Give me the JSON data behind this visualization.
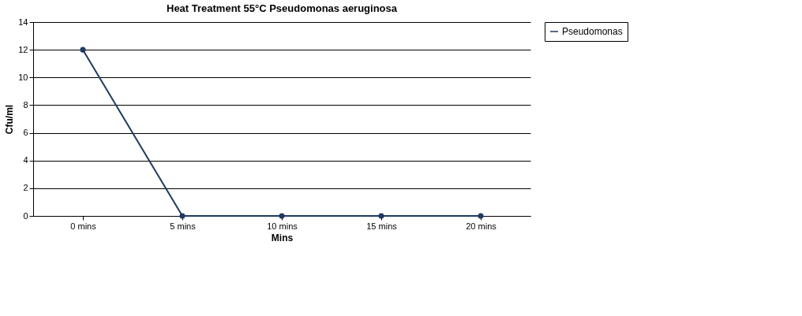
{
  "chart_data": {
    "type": "line",
    "title": "Heat Treatment 55°C Pseudomonas aeruginosa",
    "xlabel": "Mins",
    "ylabel": "Cfu/ml",
    "categories": [
      "0 mins",
      "5 mins",
      "10 mins",
      "15 mins",
      "20 mins"
    ],
    "series": [
      {
        "name": "Pseudomonas",
        "color": "#1f3a5f",
        "values": [
          12,
          0,
          0,
          0,
          0
        ]
      }
    ],
    "ylim": [
      0,
      14
    ],
    "yticks": [
      0,
      2,
      4,
      6,
      8,
      10,
      12,
      14
    ],
    "grid": "y",
    "legend": "right",
    "marker": "circle",
    "line_style": "solid"
  }
}
